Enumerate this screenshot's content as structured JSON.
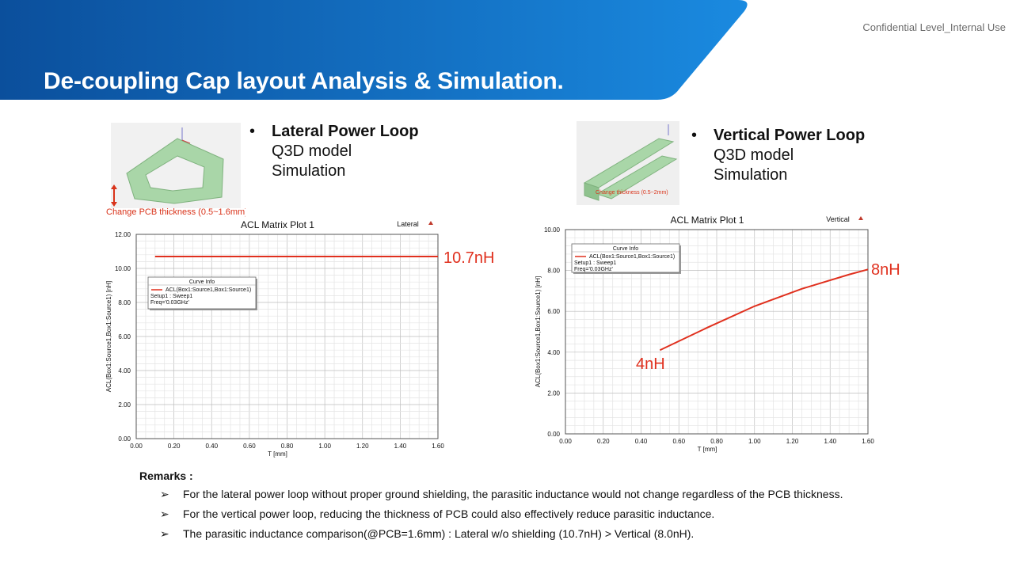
{
  "header": {
    "title": "De-coupling Cap layout Analysis & Simulation.",
    "confidential": "Confidential Level_Internal Use",
    "banner_color_start": "#0b4f9c",
    "banner_color_end": "#1a8ae0"
  },
  "lateral": {
    "bullet": "•",
    "heading": "Lateral Power Loop",
    "line1": "Q3D model",
    "line2": "Simulation",
    "image_caption": "Change PCB thickness (0.5~1.6mm)"
  },
  "vertical": {
    "bullet": "•",
    "heading": "Vertical Power Loop",
    "line1": "Q3D model",
    "line2": "Simulation",
    "image_caption": "Change thickness (0.5~2mm)"
  },
  "chart_data": [
    {
      "type": "line",
      "title": "ACL Matrix Plot 1",
      "tag": "Lateral",
      "xlabel": "T [mm]",
      "ylabel": "ACL(Box1:Source1,Box1:Source1) [nH]",
      "xlim": [
        0,
        1.6
      ],
      "ylim": [
        0,
        12
      ],
      "x_ticks": [
        "0.00",
        "0.20",
        "0.40",
        "0.60",
        "0.80",
        "1.00",
        "1.20",
        "1.40",
        "1.60"
      ],
      "y_ticks": [
        "0.00",
        "2.00",
        "4.00",
        "6.00",
        "8.00",
        "10.00",
        "12.00"
      ],
      "grid": true,
      "legend": {
        "title": "Curve Info",
        "entry": "ACL(Box1:Source1,Box1:Source1)",
        "line2": "Setup1 : Sweep1",
        "line3": "Freq='0.03GHz'"
      },
      "series": [
        {
          "name": "ACL(Box1:Source1,Box1:Source1)",
          "color": "#e0301e",
          "x": [
            0.1,
            0.4,
            0.8,
            1.2,
            1.6
          ],
          "y": [
            10.7,
            10.7,
            10.7,
            10.7,
            10.7
          ]
        }
      ],
      "annotations": [
        "10.7nH"
      ]
    },
    {
      "type": "line",
      "title": "ACL Matrix Plot 1",
      "tag": "Vertical",
      "xlabel": "T [mm]",
      "ylabel": "ACL(Box1:Source1,Box1:Source1) [nH]",
      "xlim": [
        0,
        1.6
      ],
      "ylim": [
        0,
        10
      ],
      "x_ticks": [
        "0.00",
        "0.20",
        "0.40",
        "0.60",
        "0.80",
        "1.00",
        "1.20",
        "1.40",
        "1.60"
      ],
      "y_ticks": [
        "0.00",
        "2.00",
        "4.00",
        "6.00",
        "8.00",
        "10.00"
      ],
      "grid": true,
      "legend": {
        "title": "Curve Info",
        "entry": "ACL(Box1:Source1,Box1:Source1)",
        "line2": "Setup1 : Sweep1",
        "line3": "Freq='0.03GHz'"
      },
      "series": [
        {
          "name": "ACL(Box1:Source1,Box1:Source1)",
          "color": "#e0301e",
          "x": [
            0.5,
            0.75,
            1.0,
            1.25,
            1.5,
            1.6
          ],
          "y": [
            4.1,
            5.2,
            6.25,
            7.1,
            7.8,
            8.05
          ]
        }
      ],
      "annotations": [
        "4nH",
        "8nH"
      ]
    }
  ],
  "remarks": {
    "title": "Remarks :",
    "arrow": "➢",
    "items": [
      "For the lateral power loop without proper ground shielding, the parasitic inductance would not change regardless of the PCB thickness.",
      "For the vertical power loop, reducing the thickness of PCB could also effectively reduce parasitic inductance.",
      "The parasitic inductance comparison(@PCB=1.6mm) : Lateral w/o shielding (10.7nH) > Vertical (8.0nH)."
    ]
  }
}
